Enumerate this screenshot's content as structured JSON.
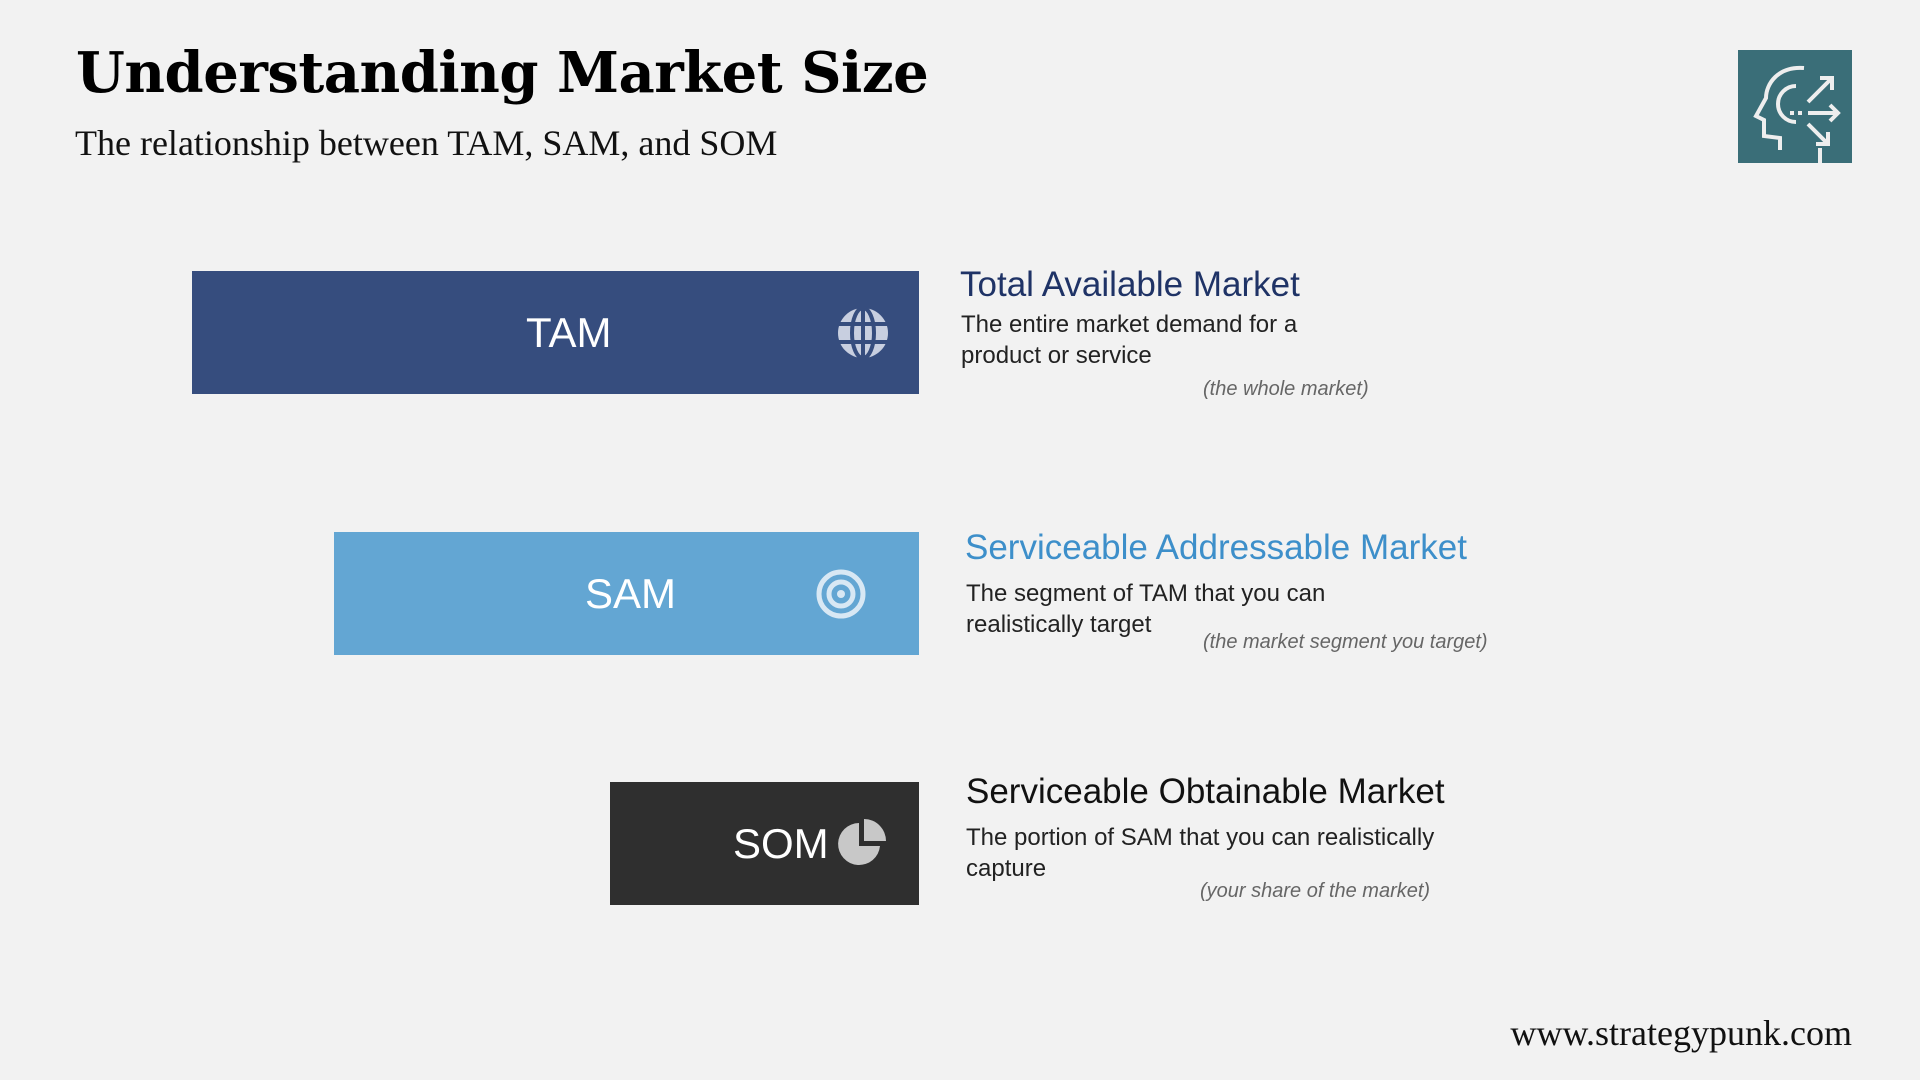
{
  "header": {
    "title": "Understanding Market Size",
    "subtitle": "The relationship between TAM, SAM, and SOM",
    "logo_icon": "head-decision-arrows-icon"
  },
  "markets": [
    {
      "abbr": "TAM",
      "name": "Total Available Market",
      "description": "The entire market demand for a product or service",
      "note": "(the whole market)",
      "icon": "globe-icon",
      "bar_color": "#364d7e",
      "name_color": "#1f3366"
    },
    {
      "abbr": "SAM",
      "name": "Serviceable Addressable Market",
      "description": "The segment of TAM that you can realistically target",
      "note": "(the market segment you target)",
      "icon": "target-icon",
      "bar_color": "#63a6d3",
      "name_color": "#3d8fca"
    },
    {
      "abbr": "SOM",
      "name": "Serviceable Obtainable Market",
      "description": "The portion of SAM that you can realistically capture",
      "note": "(your share of the market)",
      "icon": "pie-chart-icon",
      "bar_color": "#2f2f2f",
      "name_color": "#111111"
    }
  ],
  "footer": {
    "website": "www.strategypunk.com"
  }
}
